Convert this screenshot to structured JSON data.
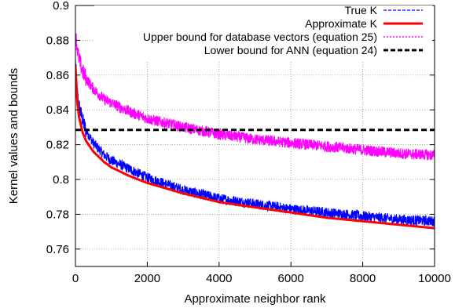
{
  "chart_data": {
    "type": "line",
    "title": "",
    "xlabel": "Approximate neighbor rank",
    "ylabel": "Kernel values and bounds",
    "xlim": [
      0,
      10000
    ],
    "ylim": [
      0.75,
      0.9
    ],
    "x_ticks": [
      0,
      2000,
      4000,
      6000,
      8000,
      10000
    ],
    "x_tick_labels": [
      "0",
      "2000",
      "4000",
      "6000",
      "8000",
      "10000"
    ],
    "y_ticks": [
      0.76,
      0.78,
      0.8,
      0.82,
      0.84,
      0.86,
      0.88,
      0.9
    ],
    "y_tick_labels": [
      "0.76",
      "0.78",
      "0.8",
      "0.82",
      "0.84",
      "0.86",
      "0.88",
      "0.9"
    ],
    "grid": true,
    "legend_position": "top-right",
    "series": [
      {
        "name": "True K",
        "color": "#0000ff",
        "style": "dashed-noisy",
        "x": [
          0,
          50,
          100,
          200,
          300,
          500,
          800,
          1000,
          1500,
          2000,
          3000,
          4000,
          5000,
          6000,
          7000,
          8000,
          9000,
          10000
        ],
        "values": [
          0.868,
          0.85,
          0.842,
          0.834,
          0.828,
          0.821,
          0.814,
          0.811,
          0.806,
          0.801,
          0.794,
          0.789,
          0.786,
          0.783,
          0.781,
          0.779,
          0.777,
          0.776
        ]
      },
      {
        "name": "Approximate K",
        "color": "#ff0000",
        "style": "solid",
        "x": [
          0,
          50,
          100,
          200,
          300,
          500,
          800,
          1000,
          1500,
          2000,
          3000,
          4000,
          5000,
          6000,
          7000,
          8000,
          9000,
          10000
        ],
        "values": [
          0.865,
          0.845,
          0.836,
          0.827,
          0.822,
          0.816,
          0.81,
          0.807,
          0.802,
          0.798,
          0.792,
          0.787,
          0.784,
          0.781,
          0.778,
          0.776,
          0.774,
          0.772
        ]
      },
      {
        "name": "Upper bound for database vectors (equation 25)",
        "color": "#ff00ff",
        "style": "dotted-noisy",
        "x": [
          0,
          50,
          100,
          200,
          300,
          500,
          800,
          1000,
          1500,
          2000,
          3000,
          4000,
          5000,
          6000,
          7000,
          8000,
          9000,
          10000
        ],
        "values": [
          0.885,
          0.875,
          0.869,
          0.862,
          0.858,
          0.852,
          0.846,
          0.844,
          0.839,
          0.835,
          0.83,
          0.826,
          0.823,
          0.821,
          0.819,
          0.817,
          0.815,
          0.814
        ]
      },
      {
        "name": "Lower bound for ANN (equation 24)",
        "color": "#000000",
        "style": "thick-dashed",
        "x": [
          0,
          10000
        ],
        "values": [
          0.8285,
          0.8285
        ]
      }
    ]
  }
}
